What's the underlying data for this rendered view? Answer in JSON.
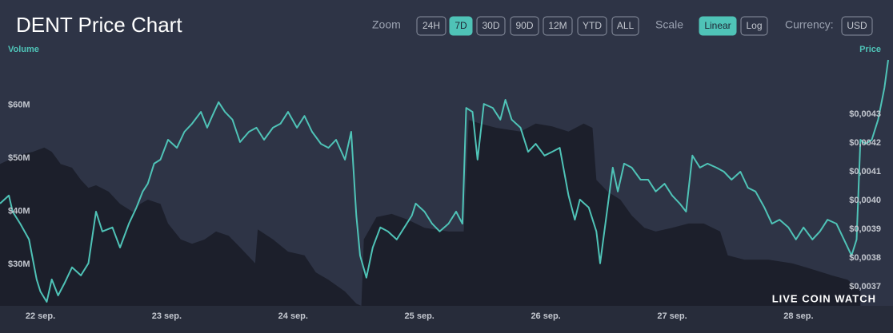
{
  "header": {
    "title": "DENT Price Chart",
    "zoom_label": "Zoom",
    "zoom_options": [
      "24H",
      "7D",
      "30D",
      "90D",
      "12M",
      "YTD",
      "ALL"
    ],
    "zoom_active": "7D",
    "scale_label": "Scale",
    "scale_options": [
      "Linear",
      "Log"
    ],
    "scale_active": "Linear",
    "currency_label": "Currency:",
    "currency_options": [
      "USD"
    ]
  },
  "watermark": "LIVE COIN WATCH",
  "chart_data": {
    "type": "line",
    "grid": false,
    "xlim": [
      -0.32,
      6.71
    ],
    "xticks": [
      {
        "value": 0,
        "label": "22 sep."
      },
      {
        "value": 1,
        "label": "23 sep."
      },
      {
        "value": 2,
        "label": "24 sep."
      },
      {
        "value": 3,
        "label": "25 sep."
      },
      {
        "value": 4,
        "label": "26 sep."
      },
      {
        "value": 5,
        "label": "27 sep."
      },
      {
        "value": 6,
        "label": "28 sep."
      }
    ],
    "ylim": [
      22.2,
      68.5
    ],
    "yticks": [
      {
        "value": 30,
        "label": "$30M"
      },
      {
        "value": 40,
        "label": "$40M"
      },
      {
        "value": 50,
        "label": "$50M"
      },
      {
        "value": 60,
        "label": "$60M"
      }
    ],
    "y2lim": [
      0.003633,
      0.004489
    ],
    "y2ticks": [
      {
        "value": 0.0037,
        "label": "$0,0037"
      },
      {
        "value": 0.0038,
        "label": "$0,0038"
      },
      {
        "value": 0.0039,
        "label": "$0,0039"
      },
      {
        "value": 0.004,
        "label": "$0,0040"
      },
      {
        "value": 0.0041,
        "label": "$0,0041"
      },
      {
        "value": 0.0042,
        "label": "$0,0042"
      },
      {
        "value": 0.0043,
        "label": "$0,0043"
      }
    ],
    "series": [
      {
        "name": "Volume",
        "type": "area",
        "color": "#1c1f2b",
        "x": [
          -0.32,
          -0.25,
          -0.19,
          -0.06,
          0.03,
          0.09,
          0.16,
          0.25,
          0.32,
          0.38,
          0.44,
          0.54,
          0.63,
          0.73,
          0.79,
          0.85,
          0.95,
          1.01,
          1.11,
          1.2,
          1.3,
          1.39,
          1.49,
          1.58,
          1.7,
          1.72,
          1.84,
          1.96,
          2.09,
          2.18,
          2.28,
          2.41,
          2.5,
          2.54,
          2.56,
          2.66,
          2.78,
          2.91,
          3.04,
          3.23,
          3.35,
          3.39,
          3.48,
          3.61,
          3.8,
          3.92,
          4.05,
          4.18,
          4.3,
          4.37,
          4.4,
          4.49,
          4.59,
          4.68,
          4.78,
          4.87,
          5.0,
          5.13,
          5.25,
          5.38,
          5.44,
          5.57,
          5.76,
          5.95,
          6.08,
          6.27,
          6.39,
          6.49
        ],
        "values": [
          48.9,
          49.7,
          50.5,
          51.2,
          52.0,
          51.2,
          48.9,
          48.2,
          45.9,
          44.4,
          44.9,
          43.7,
          41.4,
          39.9,
          41.4,
          42.2,
          41.4,
          37.7,
          34.7,
          33.9,
          34.7,
          36.2,
          35.4,
          33.2,
          30.2,
          36.6,
          34.7,
          32.4,
          31.7,
          28.5,
          27.1,
          24.9,
          22.6,
          22.2,
          34.7,
          38.9,
          39.5,
          38.4,
          36.9,
          36.2,
          36.2,
          57.2,
          56.5,
          55.7,
          55.0,
          56.5,
          56.0,
          55.0,
          56.5,
          55.7,
          45.9,
          43.7,
          42.2,
          39.2,
          36.9,
          36.2,
          36.9,
          37.7,
          37.7,
          36.2,
          31.7,
          30.9,
          30.9,
          30.2,
          29.3,
          27.9,
          27.1,
          24.9
        ]
      },
      {
        "name": "Price",
        "axis": "y2",
        "color": "#4fc3b7",
        "x": [
          -0.32,
          -0.25,
          -0.22,
          -0.16,
          -0.09,
          -0.03,
          0,
          0.05,
          0.09,
          0.14,
          0.19,
          0.25,
          0.32,
          0.38,
          0.44,
          0.49,
          0.57,
          0.63,
          0.7,
          0.76,
          0.81,
          0.85,
          0.9,
          0.95,
          1.01,
          1.08,
          1.14,
          1.2,
          1.27,
          1.32,
          1.36,
          1.41,
          1.46,
          1.52,
          1.58,
          1.65,
          1.71,
          1.77,
          1.84,
          1.9,
          1.96,
          2.03,
          2.09,
          2.15,
          2.22,
          2.28,
          2.34,
          2.41,
          2.46,
          2.5,
          2.53,
          2.58,
          2.63,
          2.69,
          2.75,
          2.82,
          2.88,
          2.94,
          2.97,
          3.04,
          3.1,
          3.16,
          3.23,
          3.29,
          3.34,
          3.37,
          3.42,
          3.46,
          3.51,
          3.58,
          3.64,
          3.68,
          3.73,
          3.8,
          3.86,
          3.92,
          3.99,
          4.05,
          4.11,
          4.18,
          4.23,
          4.27,
          4.34,
          4.4,
          4.43,
          4.48,
          4.53,
          4.57,
          4.62,
          4.68,
          4.75,
          4.81,
          4.87,
          4.94,
          5.0,
          5.06,
          5.11,
          5.16,
          5.22,
          5.28,
          5.35,
          5.41,
          5.47,
          5.54,
          5.6,
          5.66,
          5.73,
          5.79,
          5.85,
          5.92,
          5.98,
          6.04,
          6.11,
          6.17,
          6.23,
          6.3,
          6.36,
          6.42,
          6.46,
          6.49,
          6.53,
          6.58,
          6.63,
          6.68,
          6.71
        ],
        "values": [
          0.003989,
          0.004017,
          0.003961,
          0.003919,
          0.003864,
          0.003725,
          0.003683,
          0.003647,
          0.003725,
          0.003669,
          0.003711,
          0.003767,
          0.003739,
          0.003781,
          0.003961,
          0.003892,
          0.003906,
          0.003836,
          0.003919,
          0.003975,
          0.004031,
          0.004058,
          0.004128,
          0.004142,
          0.004211,
          0.004183,
          0.004239,
          0.004267,
          0.004308,
          0.004253,
          0.004294,
          0.004342,
          0.004308,
          0.004281,
          0.004203,
          0.004239,
          0.004253,
          0.004211,
          0.004253,
          0.004267,
          0.004308,
          0.004253,
          0.004294,
          0.004239,
          0.004197,
          0.004183,
          0.004211,
          0.004142,
          0.004239,
          0.003947,
          0.003808,
          0.003731,
          0.003836,
          0.003906,
          0.003892,
          0.003864,
          0.003906,
          0.003947,
          0.003989,
          0.003961,
          0.003919,
          0.003892,
          0.003919,
          0.003961,
          0.003919,
          0.004322,
          0.004308,
          0.004142,
          0.004336,
          0.004322,
          0.004281,
          0.00435,
          0.004281,
          0.004253,
          0.004169,
          0.004197,
          0.004156,
          0.004169,
          0.004183,
          0.004017,
          0.003933,
          0.004003,
          0.003975,
          0.003892,
          0.003781,
          0.003947,
          0.004114,
          0.004031,
          0.004128,
          0.004114,
          0.004072,
          0.004072,
          0.004031,
          0.004058,
          0.004017,
          0.003989,
          0.003961,
          0.004156,
          0.004114,
          0.004128,
          0.004114,
          0.0041,
          0.004072,
          0.0041,
          0.004044,
          0.004031,
          0.003975,
          0.003919,
          0.003933,
          0.003906,
          0.003864,
          0.003906,
          0.003864,
          0.003892,
          0.003933,
          0.003919,
          0.003864,
          0.003808,
          0.003864,
          0.004211,
          0.004197,
          0.004211,
          0.004281,
          0.004392,
          0.004489
        ]
      }
    ]
  }
}
